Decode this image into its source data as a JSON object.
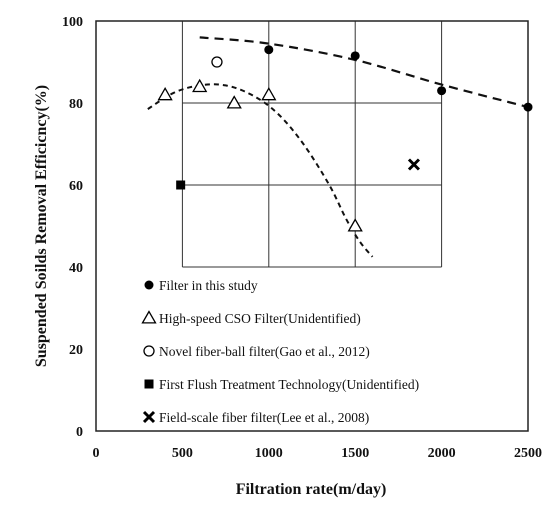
{
  "chart_data": {
    "type": "scatter",
    "title": "",
    "xlabel": "Filtration rate(m/day)",
    "ylabel": "Suspended Soilds Removal Efficicncy(%)",
    "xlim": [
      0,
      2500
    ],
    "ylim": [
      0,
      100
    ],
    "xticks": [
      0,
      500,
      1000,
      1500,
      2000,
      2500
    ],
    "yticks": [
      0,
      20,
      40,
      60,
      80,
      100
    ],
    "grid": "upper region only (y 40-100, x 500-2000)",
    "legend_position": "inside-bottom",
    "series": [
      {
        "name": "Filter in this study",
        "marker": "filled-circle",
        "points": [
          [
            1000,
            93
          ],
          [
            1500,
            91.5
          ],
          [
            2000,
            83
          ],
          [
            2500,
            79
          ]
        ]
      },
      {
        "name": "High-speed CSO Filter(Unidentified)",
        "marker": "open-triangle",
        "points": [
          [
            400,
            82
          ],
          [
            600,
            84
          ],
          [
            800,
            80
          ],
          [
            1000,
            82
          ],
          [
            1500,
            50
          ]
        ]
      },
      {
        "name": "Novel fiber-ball filter(Gao et al., 2012)",
        "marker": "open-circle",
        "points": [
          [
            700,
            90
          ]
        ]
      },
      {
        "name": "First Flush Treatment Technology(Unidentified)",
        "marker": "filled-square",
        "points": [
          [
            490,
            60
          ]
        ]
      },
      {
        "name": "Field-scale fiber filter(Lee et al., 2008)",
        "marker": "cross",
        "points": [
          [
            1840,
            65
          ]
        ]
      }
    ],
    "trend_lines": [
      {
        "style": "dashed",
        "points": [
          [
            600,
            96
          ],
          [
            1000,
            94.5
          ],
          [
            1500,
            90.5
          ],
          [
            2000,
            84.5
          ],
          [
            2500,
            79
          ]
        ]
      },
      {
        "style": "dashed",
        "points": [
          [
            300,
            78.5
          ],
          [
            450,
            82.5
          ],
          [
            600,
            84.3
          ],
          [
            750,
            84.3
          ],
          [
            900,
            82
          ],
          [
            1050,
            77.5
          ],
          [
            1200,
            70
          ],
          [
            1350,
            60
          ],
          [
            1450,
            51.5
          ],
          [
            1530,
            46
          ],
          [
            1600,
            42.5
          ]
        ]
      }
    ]
  }
}
